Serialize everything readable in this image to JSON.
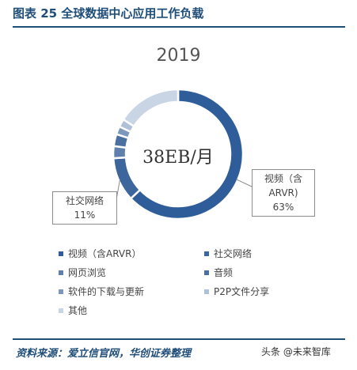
{
  "figure": {
    "title": "图表 25    全球数据中心应用工作负载",
    "source": "资料来源：爱立信官网，华创证券整理",
    "watermark": "头条 @未来智库"
  },
  "colors": {
    "title_blue": "#1f4e79",
    "video": "#2e5d99",
    "social": "#3d669c",
    "web": "#5f80ad",
    "audio": "#4a6fa1",
    "software": "#7d98bd",
    "p2p": "#afc1d8",
    "other": "#c9d5e5"
  },
  "chart_data": {
    "type": "pie",
    "subtype": "donut",
    "title": "2019",
    "center_label": "38EB/月",
    "legend_position": "bottom",
    "slices": [
      {
        "name": "视频（含ARVR）",
        "value": 63,
        "color": "#2e5d99"
      },
      {
        "name": "社交网络",
        "value": 11,
        "color": "#3d669c"
      },
      {
        "name": "网页浏览",
        "value": 3,
        "color": "#5f80ad"
      },
      {
        "name": "音频",
        "value": 3,
        "color": "#4a6fa1"
      },
      {
        "name": "软件的下载与更新",
        "value": 2,
        "color": "#7d98bd"
      },
      {
        "name": "P2P文件分享",
        "value": 2,
        "color": "#afc1d8"
      },
      {
        "name": "其他",
        "value": 16,
        "color": "#c9d5e5"
      }
    ],
    "callouts": [
      {
        "slice": "视频（含ARVR）",
        "lines": [
          "视频（含",
          "ARVR)",
          "63%"
        ]
      },
      {
        "slice": "社交网络",
        "lines": [
          "社交网络",
          "11%"
        ]
      }
    ]
  }
}
